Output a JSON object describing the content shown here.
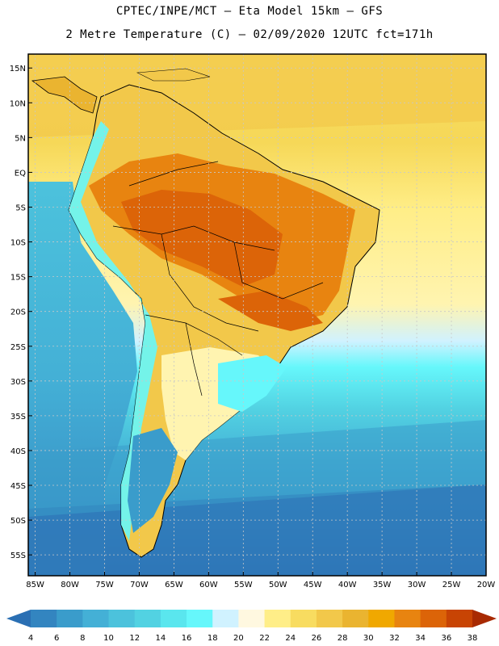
{
  "header": {
    "line1": "CPTEC/INPE/MCT –  Eta Model 15km – GFS",
    "line2": "2 Metre Temperature (C) – 02/09/2020 12UTC fct=171h"
  },
  "map": {
    "region": "South America",
    "lat_range": [
      -58,
      17
    ],
    "lon_range": [
      -86,
      -20
    ],
    "lat_labels": [
      "15N",
      "10N",
      "5N",
      "EQ",
      "5S",
      "10S",
      "15S",
      "20S",
      "25S",
      "30S",
      "35S",
      "40S",
      "45S",
      "50S",
      "55S"
    ],
    "lon_labels": [
      "85W",
      "80W",
      "75W",
      "70W",
      "65W",
      "60W",
      "55W",
      "50W",
      "45W",
      "40W",
      "35W",
      "30W",
      "25W",
      "20W"
    ]
  },
  "legend": {
    "labels": [
      "4",
      "6",
      "8",
      "10",
      "12",
      "14",
      "16",
      "18",
      "20",
      "22",
      "24",
      "26",
      "28",
      "30",
      "32",
      "34",
      "36",
      "38"
    ],
    "colors": [
      "#2a6fb3",
      "#3385c0",
      "#3a9ccb",
      "#44b0d6",
      "#4cc2dc",
      "#52d2e2",
      "#5ae6ee",
      "#66f7fb",
      "#d0f2ff",
      "#fff8e0",
      "#ffee88",
      "#f8dc60",
      "#f2c84a",
      "#eab430",
      "#f0a800",
      "#e88410",
      "#dc6408",
      "#c84404",
      "#a82a02"
    ]
  }
}
